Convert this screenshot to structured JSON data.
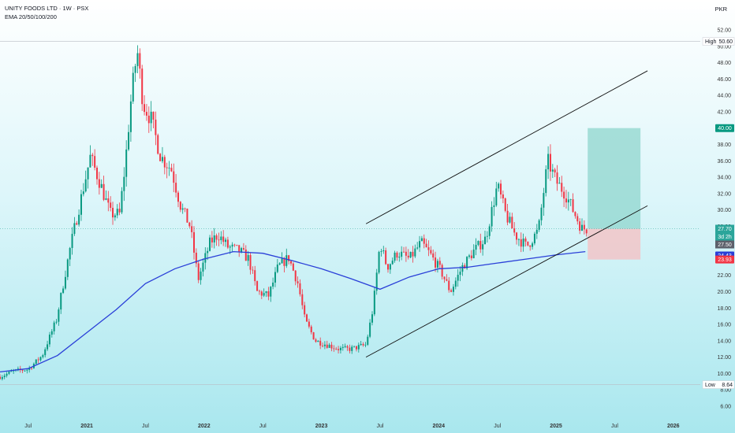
{
  "header": {
    "title": "UNITY FOODS LTD · 1W · PSX",
    "indicator": "EMA 20/50/100/200",
    "currency": "PKR"
  },
  "colors": {
    "up": "#089981",
    "down": "#f23645",
    "ema": "#2a3fd8",
    "trendline": "#111111",
    "target_zone": "#8fd6cd",
    "stop_zone": "#f2c4c8"
  },
  "chart_data": {
    "type": "candlestick",
    "ylim": [
      6,
      52
    ],
    "y_ticks": [
      "52.00",
      "50.00",
      "48.00",
      "46.00",
      "44.00",
      "42.00",
      "40.00",
      "38.00",
      "36.00",
      "34.00",
      "32.00",
      "30.00",
      "28.00",
      "26.00",
      "24.00",
      "22.00",
      "20.00",
      "18.00",
      "16.00",
      "14.00",
      "12.00",
      "10.00",
      "8.00",
      "6.00"
    ],
    "x_ticks": [
      {
        "label": "Jul",
        "t": 2020.5,
        "year": false
      },
      {
        "label": "2021",
        "t": 2021.0,
        "year": true
      },
      {
        "label": "Jul",
        "t": 2021.5,
        "year": false
      },
      {
        "label": "2022",
        "t": 2022.0,
        "year": true
      },
      {
        "label": "Jul",
        "t": 2022.5,
        "year": false
      },
      {
        "label": "2023",
        "t": 2023.0,
        "year": true
      },
      {
        "label": "Jul",
        "t": 2023.5,
        "year": false
      },
      {
        "label": "2024",
        "t": 2024.0,
        "year": true
      },
      {
        "label": "Jul",
        "t": 2024.5,
        "year": false
      },
      {
        "label": "2025",
        "t": 2025.0,
        "year": true
      },
      {
        "label": "Jul",
        "t": 2025.5,
        "year": false
      },
      {
        "label": "2026",
        "t": 2026.0,
        "year": true
      }
    ],
    "xlim": [
      2020.26,
      2026.23
    ],
    "price_path": [
      [
        2020.26,
        9.6
      ],
      [
        2020.38,
        10.3
      ],
      [
        2020.5,
        10.5
      ],
      [
        2020.62,
        12.2
      ],
      [
        2020.74,
        16.5
      ],
      [
        2020.86,
        25.5
      ],
      [
        2020.96,
        32
      ],
      [
        2021.03,
        36.5
      ],
      [
        2021.12,
        33
      ],
      [
        2021.2,
        29.5
      ],
      [
        2021.28,
        29.5
      ],
      [
        2021.33,
        36
      ],
      [
        2021.38,
        44
      ],
      [
        2021.43,
        49.5
      ],
      [
        2021.48,
        43
      ],
      [
        2021.55,
        41
      ],
      [
        2021.63,
        36.5
      ],
      [
        2021.72,
        35
      ],
      [
        2021.8,
        30.5
      ],
      [
        2021.88,
        28
      ],
      [
        2021.95,
        21.5
      ],
      [
        2022.05,
        26
      ],
      [
        2022.12,
        27
      ],
      [
        2022.2,
        25.5
      ],
      [
        2022.3,
        25
      ],
      [
        2022.38,
        24
      ],
      [
        2022.45,
        20
      ],
      [
        2022.55,
        19.5
      ],
      [
        2022.63,
        23
      ],
      [
        2022.72,
        24.2
      ],
      [
        2022.8,
        21
      ],
      [
        2022.86,
        16.5
      ],
      [
        2022.95,
        14
      ],
      [
        2023.05,
        13.5
      ],
      [
        2023.15,
        13
      ],
      [
        2023.25,
        13
      ],
      [
        2023.38,
        13.5
      ],
      [
        2023.44,
        18
      ],
      [
        2023.5,
        26
      ],
      [
        2023.56,
        23
      ],
      [
        2023.65,
        24.8
      ],
      [
        2023.75,
        24
      ],
      [
        2023.85,
        26
      ],
      [
        2023.93,
        24.5
      ],
      [
        2024.02,
        22.5
      ],
      [
        2024.1,
        20
      ],
      [
        2024.2,
        23
      ],
      [
        2024.3,
        25
      ],
      [
        2024.4,
        26.5
      ],
      [
        2024.5,
        33
      ],
      [
        2024.57,
        29.5
      ],
      [
        2024.65,
        27
      ],
      [
        2024.75,
        25.5
      ],
      [
        2024.85,
        27.5
      ],
      [
        2024.93,
        36
      ],
      [
        2025.0,
        33.5
      ],
      [
        2025.08,
        32
      ],
      [
        2025.16,
        29.5
      ],
      [
        2025.22,
        27.7
      ],
      [
        2025.27,
        27.7
      ]
    ],
    "annotations": {
      "high": {
        "label": "High",
        "value": "50.60"
      },
      "low": {
        "label": "Low",
        "value": "8.64"
      },
      "target": {
        "value": "40.00"
      },
      "last": {
        "value": "27.70",
        "countdown": "3d 2h",
        "ref": "27.50"
      },
      "ema": {
        "value": "24.43"
      },
      "stop": {
        "value": "23.93"
      }
    },
    "ema200": [
      [
        2020.26,
        10.2
      ],
      [
        2020.5,
        10.6
      ],
      [
        2020.75,
        12.2
      ],
      [
        2021.0,
        15.0
      ],
      [
        2021.25,
        17.8
      ],
      [
        2021.5,
        21.0
      ],
      [
        2021.75,
        22.8
      ],
      [
        2022.0,
        24.0
      ],
      [
        2022.25,
        24.9
      ],
      [
        2022.5,
        24.7
      ],
      [
        2022.75,
        23.8
      ],
      [
        2023.0,
        22.8
      ],
      [
        2023.25,
        21.6
      ],
      [
        2023.5,
        20.3
      ],
      [
        2023.75,
        21.8
      ],
      [
        2024.0,
        22.8
      ],
      [
        2024.25,
        23.0
      ],
      [
        2024.5,
        23.5
      ],
      [
        2024.75,
        24.0
      ],
      [
        2025.0,
        24.5
      ],
      [
        2025.25,
        24.9
      ]
    ],
    "channel": {
      "upper": [
        [
          2023.38,
          28.3
        ],
        [
          2025.78,
          47.0
        ]
      ],
      "lower": [
        [
          2023.38,
          12.0
        ],
        [
          2025.78,
          30.5
        ]
      ]
    },
    "position": {
      "t_start": 2025.27,
      "t_end": 2025.72,
      "entry": 27.7,
      "target": 40.0,
      "stop": 23.93
    }
  }
}
